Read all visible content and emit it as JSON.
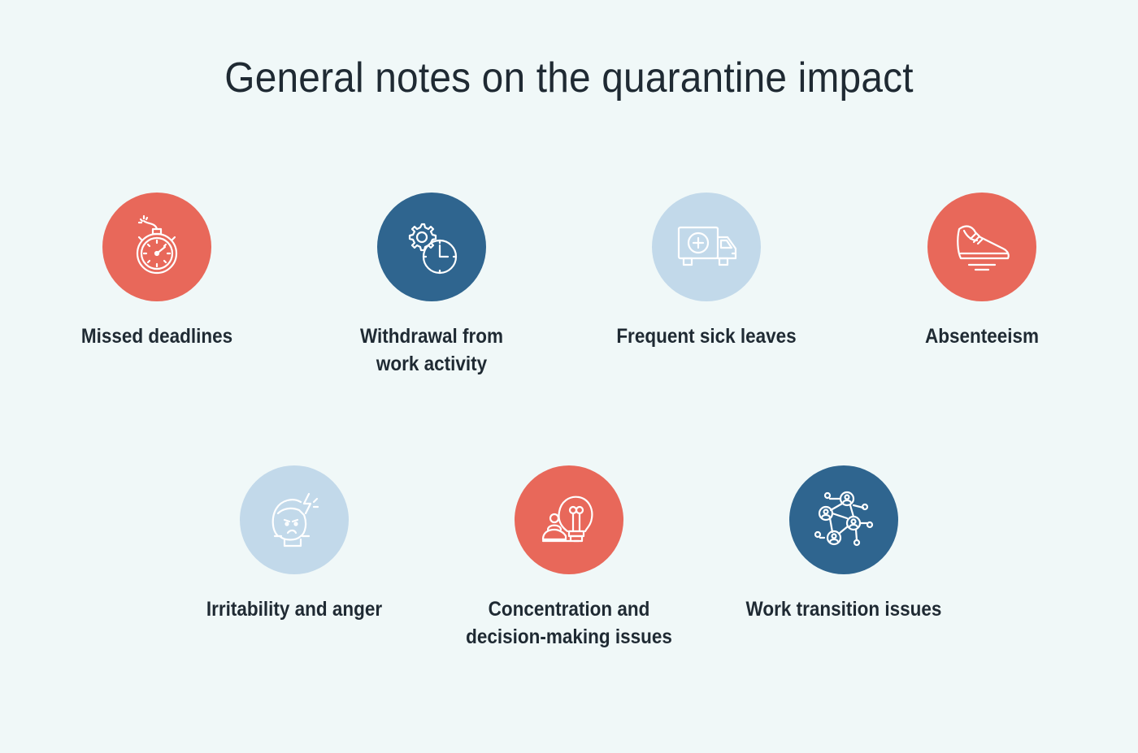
{
  "title": "General notes on the quarantine impact",
  "colors": {
    "background": "#f0f8f8",
    "coral": "#e8685a",
    "navy": "#2f658f",
    "light_blue": "#c2d9ea",
    "text": "#1f2a33",
    "icon_line": "#ffffff"
  },
  "items": [
    {
      "label": "Missed deadlines",
      "icon": "stopwatch-bomb-icon",
      "color": "coral"
    },
    {
      "label": "Withdrawal from\nwork activity",
      "icon": "gear-clock-icon",
      "color": "navy"
    },
    {
      "label": "Frequent sick leaves",
      "icon": "ambulance-icon",
      "color": "light_blue"
    },
    {
      "label": "Absenteeism",
      "icon": "running-shoe-icon",
      "color": "coral"
    },
    {
      "label": "Irritability and anger",
      "icon": "angry-face-icon",
      "color": "light_blue"
    },
    {
      "label": "Concentration and\ndecision-making issues",
      "icon": "lightbulb-person-icon",
      "color": "coral"
    },
    {
      "label": "Work transition issues",
      "icon": "people-network-icon",
      "color": "navy"
    }
  ]
}
